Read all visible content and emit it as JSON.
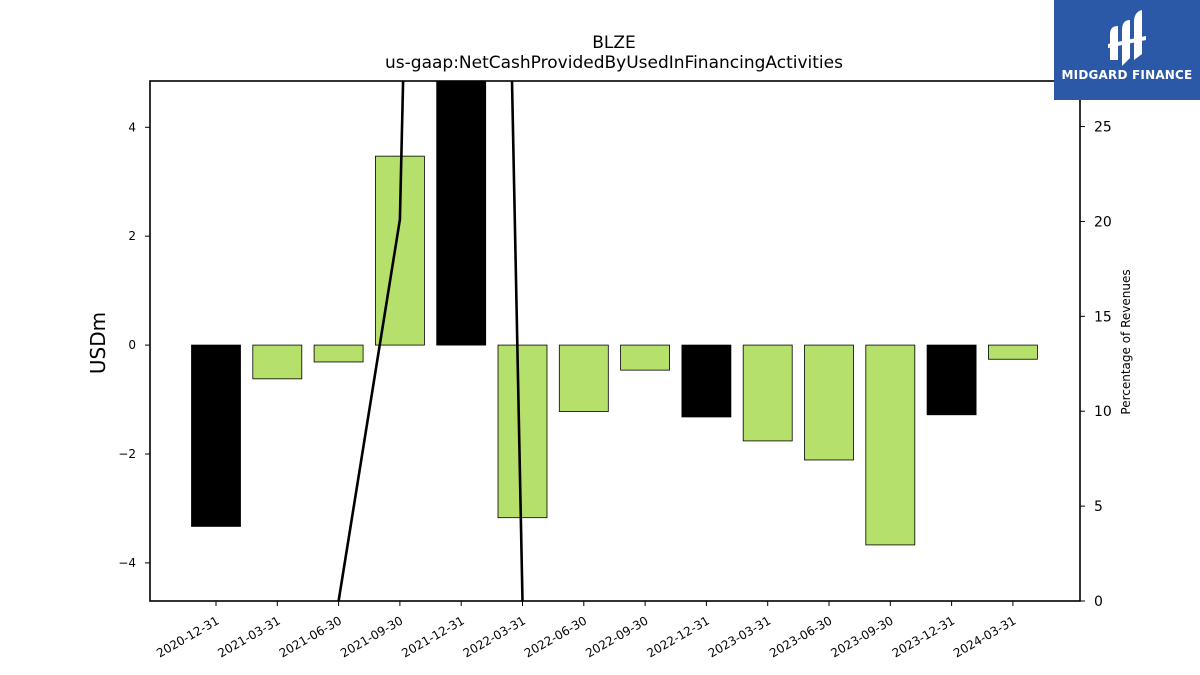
{
  "chart_data": {
    "type": "bar",
    "title": "BLZE",
    "subtitle": "us-gaap:NetCashProvidedByUsedInFinancingActivities",
    "ylabel": "USDm",
    "ylabel_right": "Percentage of Revenues",
    "categories": [
      "2020-12-31",
      "2021-03-31",
      "2021-06-30",
      "2021-09-30",
      "2021-12-31",
      "2022-03-31",
      "2022-06-30",
      "2022-09-30",
      "2022-12-31",
      "2023-03-31",
      "2023-06-30",
      "2023-09-30",
      "2023-12-31",
      "2024-03-31"
    ],
    "values": [
      -3.33,
      -0.62,
      -0.31,
      3.47,
      4.9,
      -3.17,
      -1.22,
      -0.46,
      -1.32,
      -1.76,
      -2.11,
      -3.67,
      -1.28,
      -0.26
    ],
    "bar_colors": [
      "#000000",
      "#b5e06b",
      "#b5e06b",
      "#b5e06b",
      "#000000",
      "#b5e06b",
      "#b5e06b",
      "#b5e06b",
      "#000000",
      "#b5e06b",
      "#b5e06b",
      "#b5e06b",
      "#000000",
      "#b5e06b"
    ],
    "ylim": [
      -4.7,
      4.85
    ],
    "yticks": [
      -4,
      -2,
      0,
      2,
      4
    ],
    "y2lim": [
      0,
      27.4
    ],
    "y2ticks": [
      0,
      5,
      10,
      15,
      20,
      25
    ],
    "line_series": {
      "name": "",
      "x_index": [
        2,
        3,
        4,
        5
      ],
      "values": [
        0,
        20.1,
        160,
        0
      ]
    },
    "legend": "none",
    "grid": false
  },
  "logo": {
    "text": "MIDGARD FINANCE",
    "background": "#2c58a8"
  }
}
